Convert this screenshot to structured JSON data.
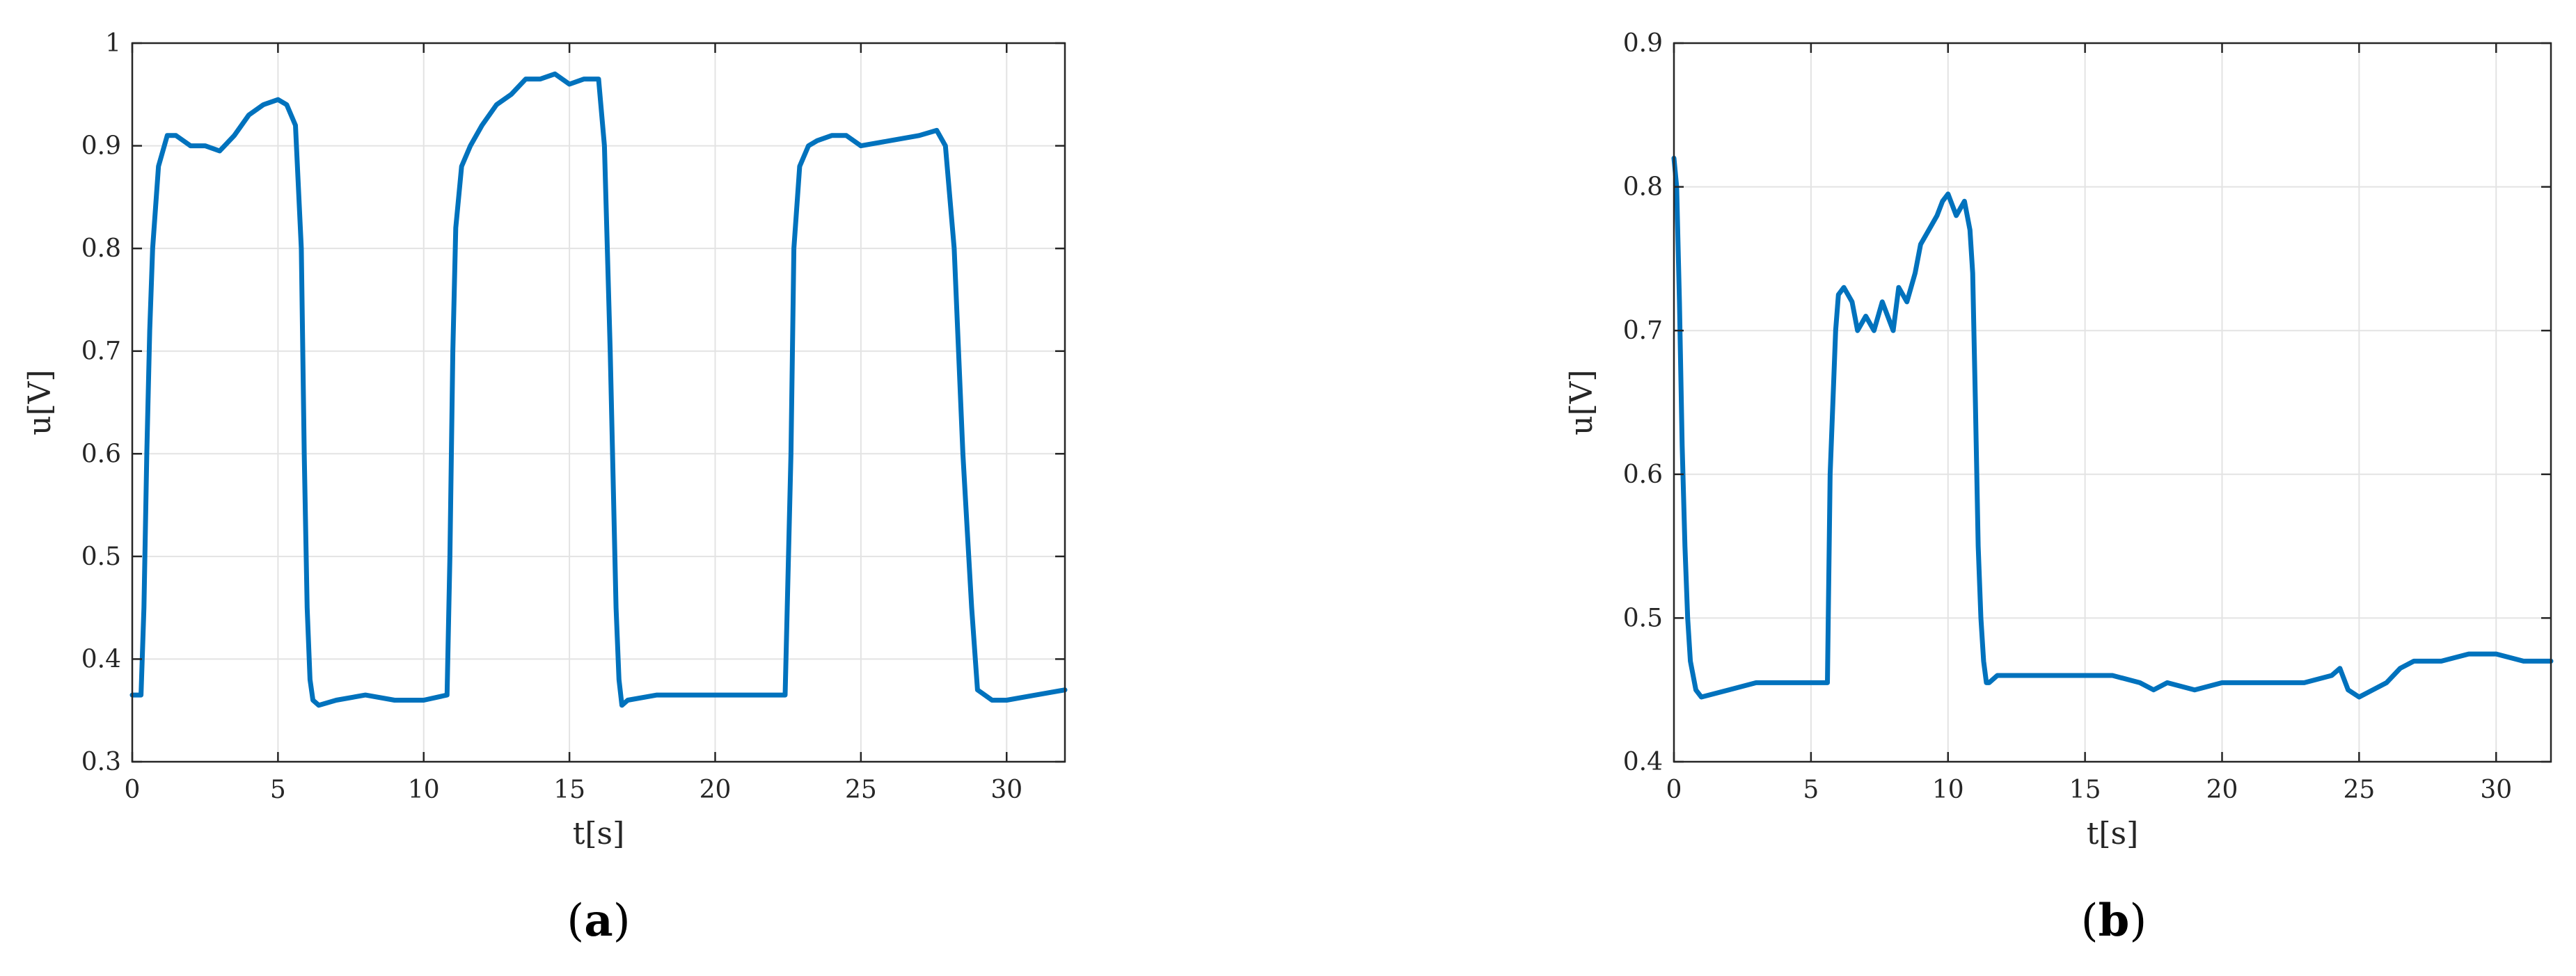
{
  "chart_data": [
    {
      "type": "line",
      "panel": "a",
      "xlabel": "t[s]",
      "ylabel": "u[V]",
      "xlim": [
        0,
        32
      ],
      "ylim": [
        0.3,
        1.0
      ],
      "xticks": [
        0,
        5,
        10,
        15,
        20,
        25,
        30
      ],
      "yticks": [
        0.3,
        0.4,
        0.5,
        0.6,
        0.7,
        0.8,
        0.9,
        1.0
      ],
      "xtick_labels": [
        "0",
        "5",
        "10",
        "15",
        "20",
        "25",
        "30"
      ],
      "ytick_labels": [
        "0.3",
        "0.4",
        "0.5",
        "0.6",
        "0.7",
        "0.8",
        "0.9",
        "1"
      ],
      "grid": true,
      "color": "#0072BD",
      "series": [
        {
          "x": [
            0,
            0.3,
            0.4,
            0.5,
            0.6,
            0.7,
            0.8,
            0.9,
            1.0,
            1.2,
            1.5,
            2.0,
            2.5,
            3.0,
            3.5,
            4.0,
            4.5,
            5.0,
            5.3,
            5.6,
            5.8,
            5.9,
            6.0,
            6.1,
            6.2,
            6.4,
            7.0,
            8.0,
            9.0,
            10.0,
            10.8,
            10.9,
            11.0,
            11.1,
            11.3,
            11.6,
            12.0,
            12.5,
            13.0,
            13.5,
            14.0,
            14.5,
            15.0,
            15.5,
            16.0,
            16.2,
            16.4,
            16.6,
            16.7,
            16.8,
            17.0,
            18.0,
            20.0,
            22.0,
            22.4,
            22.6,
            22.7,
            22.9,
            23.2,
            23.5,
            24.0,
            24.5,
            25.0,
            26.0,
            27.0,
            27.6,
            27.9,
            28.2,
            28.5,
            28.8,
            29.0,
            29.5,
            30.0,
            31.0,
            32.0
          ],
          "y": [
            0.365,
            0.365,
            0.45,
            0.6,
            0.72,
            0.8,
            0.84,
            0.88,
            0.89,
            0.91,
            0.91,
            0.9,
            0.9,
            0.895,
            0.91,
            0.93,
            0.94,
            0.945,
            0.94,
            0.92,
            0.8,
            0.6,
            0.45,
            0.38,
            0.36,
            0.355,
            0.36,
            0.365,
            0.36,
            0.36,
            0.365,
            0.5,
            0.7,
            0.82,
            0.88,
            0.9,
            0.92,
            0.94,
            0.95,
            0.965,
            0.965,
            0.97,
            0.96,
            0.965,
            0.965,
            0.9,
            0.7,
            0.45,
            0.38,
            0.355,
            0.36,
            0.365,
            0.365,
            0.365,
            0.365,
            0.6,
            0.8,
            0.88,
            0.9,
            0.905,
            0.91,
            0.91,
            0.9,
            0.905,
            0.91,
            0.915,
            0.9,
            0.8,
            0.6,
            0.45,
            0.37,
            0.36,
            0.36,
            0.365,
            0.37
          ]
        }
      ],
      "caption": "a"
    },
    {
      "type": "line",
      "panel": "b",
      "xlabel": "t[s]",
      "ylabel": "u[V]",
      "xlim": [
        0,
        32
      ],
      "ylim": [
        0.4,
        0.9
      ],
      "xticks": [
        0,
        5,
        10,
        15,
        20,
        25,
        30
      ],
      "yticks": [
        0.4,
        0.5,
        0.6,
        0.7,
        0.8,
        0.9
      ],
      "xtick_labels": [
        "0",
        "5",
        "10",
        "15",
        "20",
        "25",
        "30"
      ],
      "ytick_labels": [
        "0.4",
        "0.5",
        "0.6",
        "0.7",
        "0.8",
        "0.9"
      ],
      "grid": true,
      "color": "#0072BD",
      "series": [
        {
          "x": [
            0,
            0.1,
            0.2,
            0.3,
            0.4,
            0.5,
            0.6,
            0.8,
            1.0,
            2.0,
            3.0,
            4.0,
            5.0,
            5.5,
            5.6,
            5.7,
            5.9,
            6.0,
            6.2,
            6.5,
            6.7,
            7.0,
            7.3,
            7.6,
            8.0,
            8.2,
            8.5,
            8.8,
            9.0,
            9.3,
            9.6,
            9.8,
            10.0,
            10.3,
            10.6,
            10.8,
            10.9,
            11.0,
            11.1,
            11.2,
            11.3,
            11.4,
            11.5,
            11.8,
            12.0,
            13.0,
            14.0,
            15.0,
            16.0,
            17.0,
            17.5,
            18.0,
            19.0,
            20.0,
            21.0,
            22.0,
            23.0,
            24.0,
            24.3,
            24.6,
            25.0,
            25.5,
            26.0,
            26.5,
            27.0,
            28.0,
            29.0,
            30.0,
            31.0,
            32.0
          ],
          "y": [
            0.82,
            0.8,
            0.72,
            0.62,
            0.55,
            0.5,
            0.47,
            0.45,
            0.445,
            0.45,
            0.455,
            0.455,
            0.455,
            0.455,
            0.455,
            0.6,
            0.7,
            0.725,
            0.73,
            0.72,
            0.7,
            0.71,
            0.7,
            0.72,
            0.7,
            0.73,
            0.72,
            0.74,
            0.76,
            0.77,
            0.78,
            0.79,
            0.795,
            0.78,
            0.79,
            0.77,
            0.74,
            0.65,
            0.55,
            0.5,
            0.47,
            0.455,
            0.455,
            0.46,
            0.46,
            0.46,
            0.46,
            0.46,
            0.46,
            0.455,
            0.45,
            0.455,
            0.45,
            0.455,
            0.455,
            0.455,
            0.455,
            0.46,
            0.465,
            0.45,
            0.445,
            0.45,
            0.455,
            0.465,
            0.47,
            0.47,
            0.475,
            0.475,
            0.47,
            0.47
          ]
        }
      ],
      "caption": "b"
    }
  ]
}
